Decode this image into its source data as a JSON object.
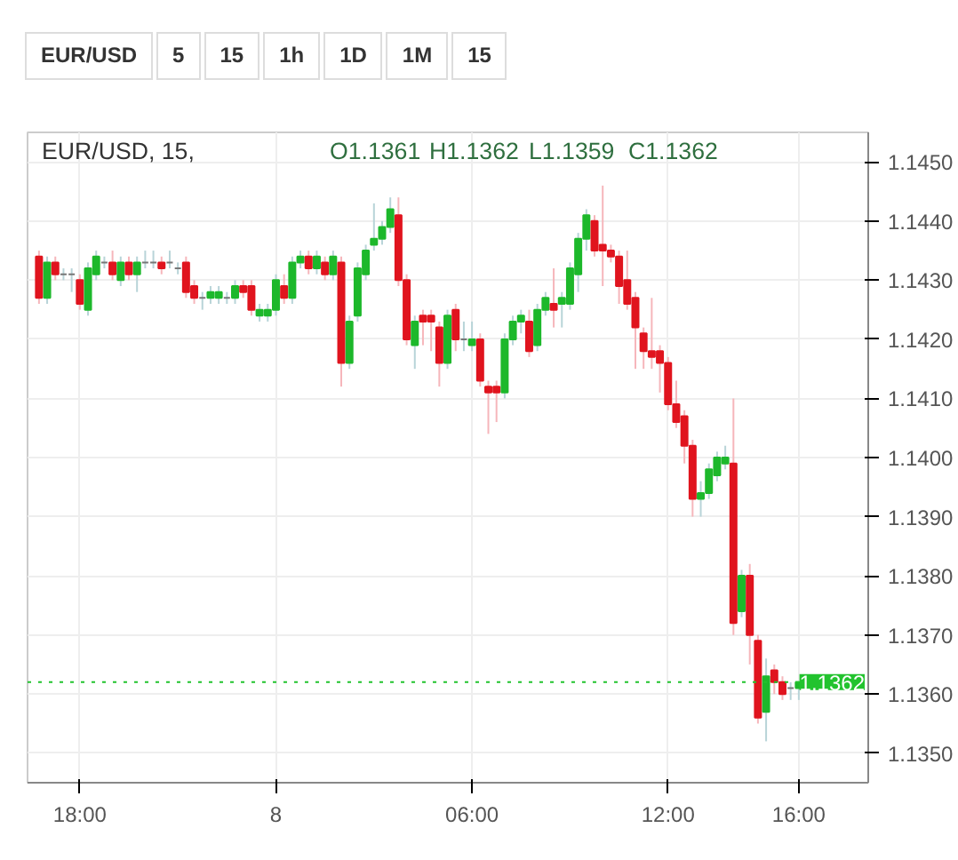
{
  "chart_data": {
    "type": "candlestick",
    "title": "EUR/USD, 15,",
    "ohlc": [
      [
        1.1434,
        1.1435,
        1.1426,
        1.1427
      ],
      [
        1.1427,
        1.1434,
        1.1426,
        1.1433
      ],
      [
        1.1433,
        1.1434,
        1.143,
        1.1431
      ],
      [
        1.1431,
        1.1432,
        1.143,
        1.1431
      ],
      [
        1.1431,
        1.1432,
        1.1428,
        1.1431
      ],
      [
        1.143,
        1.1431,
        1.1425,
        1.1426
      ],
      [
        1.1425,
        1.1433,
        1.1424,
        1.1432
      ],
      [
        1.1431,
        1.1435,
        1.143,
        1.1434
      ],
      [
        1.1433,
        1.1434,
        1.1432,
        1.1433
      ],
      [
        1.1433,
        1.1435,
        1.143,
        1.1431
      ],
      [
        1.143,
        1.1434,
        1.1429,
        1.1433
      ],
      [
        1.1433,
        1.1434,
        1.143,
        1.1431
      ],
      [
        1.1431,
        1.1434,
        1.1428,
        1.1433
      ],
      [
        1.1433,
        1.1435,
        1.1432,
        1.1433
      ],
      [
        1.1433,
        1.1435,
        1.1432,
        1.1433
      ],
      [
        1.1433,
        1.1434,
        1.1431,
        1.1432
      ],
      [
        1.1433,
        1.1435,
        1.1432,
        1.1433
      ],
      [
        1.1432,
        1.1433,
        1.1431,
        1.1432
      ],
      [
        1.1433,
        1.1434,
        1.1427,
        1.1428
      ],
      [
        1.1429,
        1.143,
        1.1426,
        1.1427
      ],
      [
        1.1427,
        1.1428,
        1.1425,
        1.1427
      ],
      [
        1.1427,
        1.1429,
        1.1426,
        1.1428
      ],
      [
        1.1427,
        1.1429,
        1.1426,
        1.1428
      ],
      [
        1.1427,
        1.1428,
        1.1426,
        1.1427
      ],
      [
        1.1427,
        1.143,
        1.1426,
        1.1429
      ],
      [
        1.1429,
        1.143,
        1.1427,
        1.1428
      ],
      [
        1.1429,
        1.143,
        1.1424,
        1.1425
      ],
      [
        1.1424,
        1.1426,
        1.1423,
        1.1425
      ],
      [
        1.1424,
        1.1426,
        1.1423,
        1.1425
      ],
      [
        1.1425,
        1.1431,
        1.1424,
        1.143
      ],
      [
        1.1429,
        1.1431,
        1.1426,
        1.1427
      ],
      [
        1.1427,
        1.1434,
        1.1426,
        1.1433
      ],
      [
        1.1433,
        1.1435,
        1.1432,
        1.1434
      ],
      [
        1.1434,
        1.1435,
        1.1431,
        1.1432
      ],
      [
        1.1432,
        1.1435,
        1.1431,
        1.1434
      ],
      [
        1.1433,
        1.1434,
        1.143,
        1.1431
      ],
      [
        1.1431,
        1.1435,
        1.143,
        1.1434
      ],
      [
        1.1433,
        1.1434,
        1.1412,
        1.1416
      ],
      [
        1.1416,
        1.1424,
        1.1415,
        1.1423
      ],
      [
        1.1424,
        1.1433,
        1.1423,
        1.1432
      ],
      [
        1.1431,
        1.1436,
        1.143,
        1.1435
      ],
      [
        1.1436,
        1.1443,
        1.1435,
        1.1437
      ],
      [
        1.1437,
        1.144,
        1.1436,
        1.1439
      ],
      [
        1.1439,
        1.1444,
        1.1438,
        1.1442
      ],
      [
        1.1441,
        1.1444,
        1.1429,
        1.143
      ],
      [
        1.143,
        1.1431,
        1.1419,
        1.142
      ],
      [
        1.1419,
        1.1424,
        1.1415,
        1.1423
      ],
      [
        1.1424,
        1.1425,
        1.1419,
        1.1423
      ],
      [
        1.1424,
        1.1425,
        1.1418,
        1.1423
      ],
      [
        1.1422,
        1.1423,
        1.1412,
        1.1416
      ],
      [
        1.1416,
        1.1425,
        1.1415,
        1.1424
      ],
      [
        1.1425,
        1.1426,
        1.1418,
        1.142
      ],
      [
        1.142,
        1.1423,
        1.1418,
        1.142
      ],
      [
        1.1419,
        1.1423,
        1.1418,
        1.142
      ],
      [
        1.142,
        1.1421,
        1.1412,
        1.1413
      ],
      [
        1.1412,
        1.1413,
        1.1404,
        1.1411
      ],
      [
        1.1412,
        1.1413,
        1.1406,
        1.1411
      ],
      [
        1.1411,
        1.1421,
        1.141,
        1.142
      ],
      [
        1.142,
        1.1424,
        1.1419,
        1.1423
      ],
      [
        1.1423,
        1.1425,
        1.1421,
        1.1424
      ],
      [
        1.1423,
        1.1425,
        1.1417,
        1.1418
      ],
      [
        1.1419,
        1.1426,
        1.1418,
        1.1425
      ],
      [
        1.1425,
        1.1428,
        1.1424,
        1.1427
      ],
      [
        1.1426,
        1.1432,
        1.1422,
        1.1425
      ],
      [
        1.1426,
        1.1428,
        1.1422,
        1.1427
      ],
      [
        1.1426,
        1.1433,
        1.1425,
        1.1432
      ],
      [
        1.1431,
        1.1438,
        1.1428,
        1.1437
      ],
      [
        1.1437,
        1.1442,
        1.1435,
        1.1441
      ],
      [
        1.144,
        1.1441,
        1.1434,
        1.1435
      ],
      [
        1.1436,
        1.1446,
        1.1429,
        1.1435
      ],
      [
        1.1435,
        1.1436,
        1.1433,
        1.1434
      ],
      [
        1.1434,
        1.1435,
        1.1426,
        1.1429
      ],
      [
        1.143,
        1.1435,
        1.1425,
        1.1426
      ],
      [
        1.1427,
        1.1428,
        1.1415,
        1.1422
      ],
      [
        1.1421,
        1.1422,
        1.1415,
        1.1418
      ],
      [
        1.1418,
        1.1427,
        1.1415,
        1.1417
      ],
      [
        1.1418,
        1.1419,
        1.1411,
        1.1416
      ],
      [
        1.1416,
        1.1417,
        1.1408,
        1.1409
      ],
      [
        1.1409,
        1.1413,
        1.1405,
        1.1406
      ],
      [
        1.1407,
        1.1408,
        1.1399,
        1.1402
      ],
      [
        1.1402,
        1.1403,
        1.139,
        1.1393
      ],
      [
        1.1393,
        1.1396,
        1.139,
        1.1394
      ],
      [
        1.1394,
        1.1399,
        1.1393,
        1.1398
      ],
      [
        1.1397,
        1.1401,
        1.1396,
        1.14
      ],
      [
        1.1399,
        1.1402,
        1.1398,
        1.14
      ],
      [
        1.1399,
        1.141,
        1.137,
        1.1372
      ],
      [
        1.1374,
        1.1381,
        1.1373,
        1.138
      ],
      [
        1.138,
        1.1382,
        1.1365,
        1.137
      ],
      [
        1.1369,
        1.137,
        1.1355,
        1.1356
      ],
      [
        1.1357,
        1.1366,
        1.1352,
        1.1363
      ],
      [
        1.1364,
        1.1365,
        1.136,
        1.1362
      ],
      [
        1.1362,
        1.1363,
        1.1359,
        1.136
      ],
      [
        1.1361,
        1.1362,
        1.1359,
        1.1361
      ],
      [
        1.1361,
        1.1362,
        1.1359,
        1.1362
      ]
    ],
    "categories": [
      null,
      null,
      null,
      null,
      null,
      "18:00",
      null,
      null,
      null,
      null,
      null,
      null,
      null,
      null,
      null,
      null,
      null,
      null,
      null,
      null,
      null,
      null,
      null,
      null,
      null,
      null,
      null,
      null,
      null,
      "8",
      null,
      null,
      null,
      null,
      null,
      null,
      null,
      null,
      null,
      null,
      null,
      null,
      null,
      null,
      null,
      null,
      null,
      null,
      null,
      null,
      null,
      null,
      null,
      "06:00",
      null,
      null,
      null,
      null,
      null,
      null,
      null,
      null,
      null,
      null,
      null,
      null,
      null,
      null,
      null,
      null,
      null,
      null,
      null,
      null,
      null,
      null,
      null,
      "12:00",
      null,
      null,
      null,
      null,
      null,
      null,
      null,
      null,
      null,
      null,
      null,
      null,
      null,
      null,
      null,
      "16:00"
    ],
    "ylim": [
      1.1345,
      1.1455
    ],
    "yticks": [
      {
        "value": 1.135,
        "label": "1.1350"
      },
      {
        "value": 1.136,
        "label": "1.1360"
      },
      {
        "value": 1.137,
        "label": "1.1370"
      },
      {
        "value": 1.138,
        "label": "1.1380"
      },
      {
        "value": 1.139,
        "label": "1.1390"
      },
      {
        "value": 1.14,
        "label": "1.1400"
      },
      {
        "value": 1.141,
        "label": "1.1410"
      },
      {
        "value": 1.142,
        "label": "1.1420"
      },
      {
        "value": 1.143,
        "label": "1.1430"
      },
      {
        "value": 1.144,
        "label": "1.1440"
      },
      {
        "value": 1.145,
        "label": "1.1450"
      }
    ],
    "grid": true,
    "ref_lines": [
      {
        "axis": "y",
        "value": 1.1362,
        "label": "1.1362",
        "color": "#22c32e",
        "line_style": "dotted"
      }
    ],
    "annotations": [
      "O1.1361",
      "H1.1362",
      "L1.1359",
      "C1.1362",
      "EUR/USD",
      "5",
      "15",
      "1h",
      "1D",
      "1M",
      "15"
    ]
  }
}
